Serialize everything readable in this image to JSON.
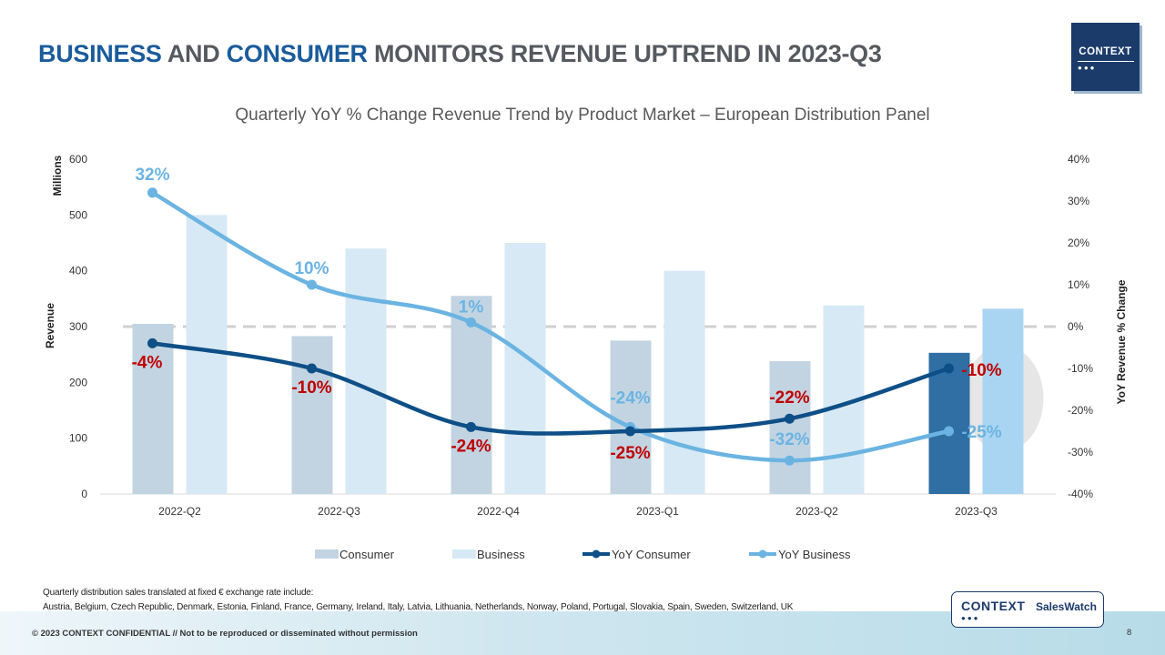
{
  "header": {
    "title_part1": "BUSINESS",
    "title_part2": " AND ",
    "title_part3": "CONSUMER",
    "title_part4": " MONITORS REVENUE UPTREND IN 2023-Q3"
  },
  "logo": {
    "text": "CONTEXT",
    "dots": "●●●"
  },
  "footer": {
    "note_line1": "Quarterly distribution sales translated at fixed € exchange rate include:",
    "note_line2": "Austria, Belgium, Czech Republic, Denmark, Estonia, Finland, France, Germany, Ireland, Italy, Latvia, Lithuania, Netherlands, Norway, Poland, Portugal, Slovakia, Spain, Sweden, Switzerland, UK",
    "badge_context": "CONTEXT",
    "badge_saleswatch": "SalesWatch",
    "badge_dots": "●●●",
    "copyright": "© 2023 CONTEXT CONFIDENTIAL // Not to be reproduced or disseminated without permission",
    "page_number": "8"
  },
  "colors": {
    "consumer_bar": "#c2d4e2",
    "business_bar": "#d7e9f5",
    "consumer_bar_highlight": "#2f6fa4",
    "business_bar_highlight": "#a9d5f2",
    "yoy_consumer": "#0e4f87",
    "yoy_business": "#6bb4e2",
    "consumer_label": "#c00000",
    "business_label": "#6bb4e2",
    "zero_line": "#d0d0d0"
  },
  "chart_data": {
    "type": "bar",
    "title": "Quarterly YoY % Change Revenue Trend by Product Market – European Distribution Panel",
    "categories": [
      "2022-Q2",
      "2022-Q3",
      "2022-Q4",
      "2023-Q1",
      "2023-Q2",
      "2023-Q3"
    ],
    "ylabel": "Revenue",
    "yunit_label": "Millions",
    "ylim": [
      0,
      600
    ],
    "yticks": [
      0,
      100,
      200,
      300,
      400,
      500,
      600
    ],
    "y2label": "YoY Revenue % Change",
    "y2lim": [
      -40,
      40
    ],
    "y2ticks": [
      -40,
      -30,
      -20,
      -10,
      0,
      10,
      20,
      30,
      40
    ],
    "series": [
      {
        "name": "Consumer",
        "kind": "bar",
        "axis": "left",
        "values": [
          305,
          283,
          355,
          275,
          238,
          253
        ]
      },
      {
        "name": "Business",
        "kind": "bar",
        "axis": "left",
        "values": [
          500,
          440,
          450,
          400,
          338,
          332
        ]
      },
      {
        "name": "YoY Consumer",
        "kind": "line",
        "axis": "right",
        "values": [
          -4,
          -10,
          -24,
          -25,
          -22,
          -10
        ],
        "labels": [
          "-4%",
          "-10%",
          "-24%",
          "-25%",
          "-22%",
          "-10%"
        ]
      },
      {
        "name": "YoY Business",
        "kind": "line",
        "axis": "right",
        "values": [
          32,
          10,
          1,
          -24,
          -32,
          -25
        ],
        "labels": [
          "32%",
          "10%",
          "1%",
          "-24%",
          "-32%",
          "-25%"
        ]
      }
    ],
    "legend": [
      "Consumer",
      "Business",
      "YoY Consumer",
      "YoY Business"
    ],
    "legend_position": "bottom",
    "highlighted_category": "2023-Q3"
  }
}
